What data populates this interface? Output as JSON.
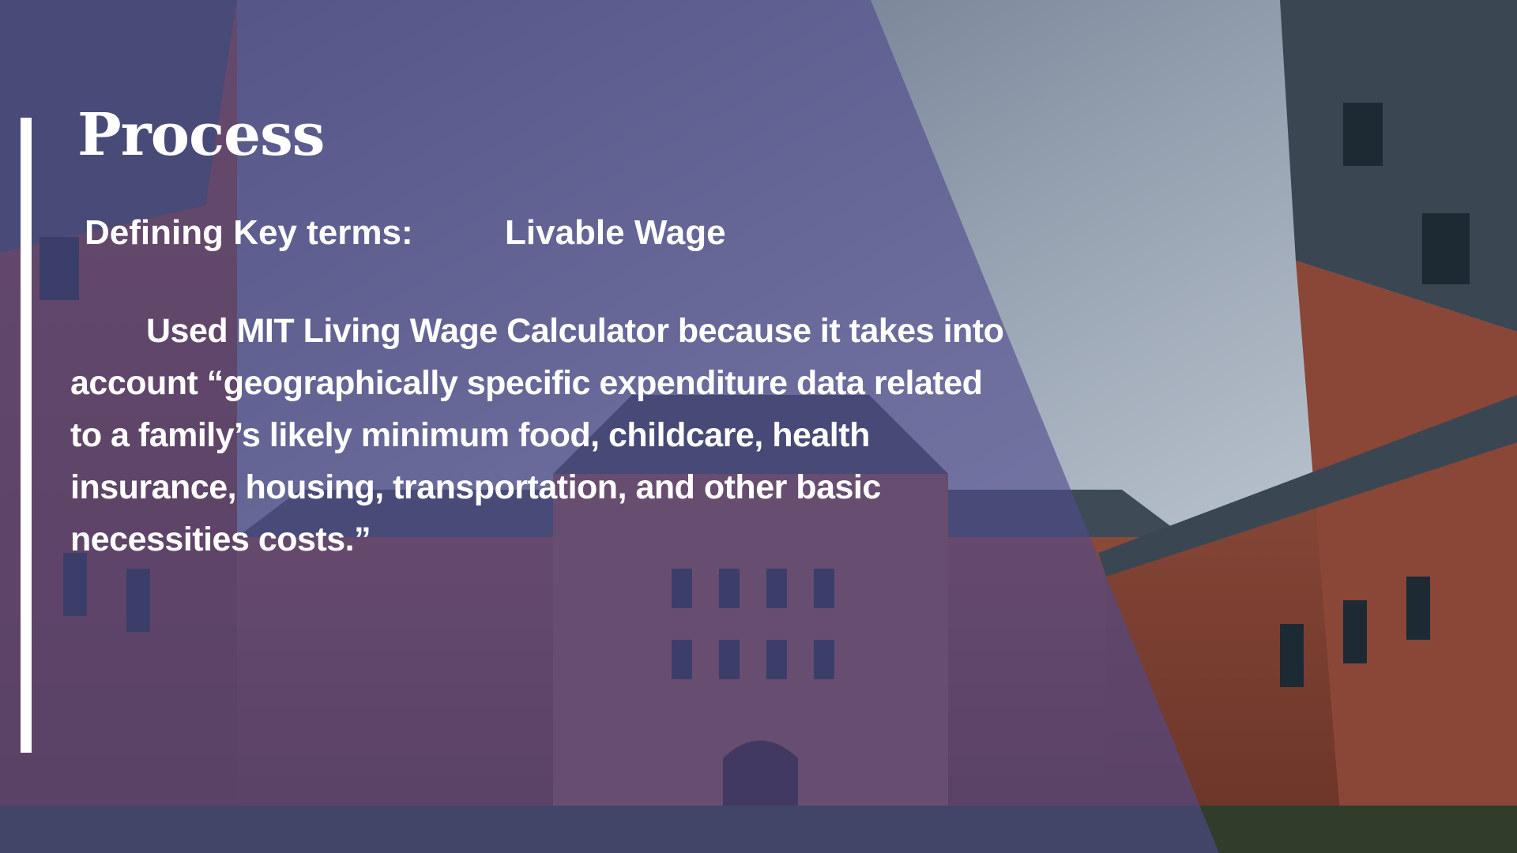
{
  "slide": {
    "title": "Process",
    "defining_label": "Defining Key terms:",
    "term": "Livable Wage",
    "body": "Used MIT Living Wage Calculator because it takes into account “geographically specific expenditure data related to a family’s likely minimum food, childcare, health insurance, housing, transportation, and other basic necessities costs.”"
  }
}
